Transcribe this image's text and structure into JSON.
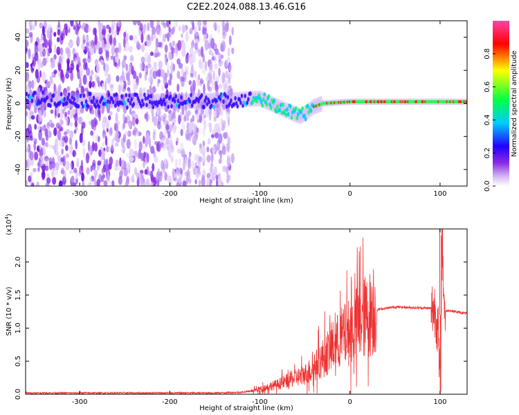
{
  "title": "C2E2.2024.088.13.46.G16",
  "chart_data": [
    {
      "type": "heatmap",
      "xlabel": "Height of straight line (km)",
      "ylabel": "Frequency (Hz)",
      "xlim": [
        -360,
        130
      ],
      "ylim": [
        -50,
        50
      ],
      "xticks": [
        -300,
        -200,
        -100,
        0,
        100
      ],
      "yticks": [
        -40,
        -20,
        0,
        20,
        40
      ],
      "colorbar": {
        "label": "Normalized spectral amplitude",
        "range": [
          0,
          1
        ],
        "ticks": [
          "0.0",
          "0.2",
          "0.4",
          "0.6",
          "0.8"
        ],
        "colors": [
          "#ffffff",
          "#d2b4f5",
          "#8a2be2",
          "#2200ff",
          "#00ccff",
          "#00ff44",
          "#ffff00",
          "#ff0000",
          "#ff44aa"
        ]
      },
      "features": {
        "noise_region_x": [
          -360,
          -130
        ],
        "noise_region_y": [
          -50,
          50
        ],
        "band_center_points": [
          {
            "x": -360,
            "y": 3
          },
          {
            "x": -300,
            "y": 2
          },
          {
            "x": -200,
            "y": 1
          },
          {
            "x": -130,
            "y": 2
          },
          {
            "x": -100,
            "y": 3
          },
          {
            "x": -80,
            "y": -2
          },
          {
            "x": -55,
            "y": -8
          },
          {
            "x": -40,
            "y": -2
          },
          {
            "x": -30,
            "y": 0
          },
          {
            "x": 0,
            "y": 1
          },
          {
            "x": 50,
            "y": 1
          },
          {
            "x": 100,
            "y": 1
          },
          {
            "x": 130,
            "y": 1
          }
        ]
      }
    },
    {
      "type": "line",
      "xlabel": "Height of straight line (km)",
      "ylabel": "SNR (10 * v/v)",
      "multiplier": "(x10",
      "multiplier_exp": "4",
      "multiplier_close": ")",
      "xlim": [
        -360,
        130
      ],
      "ylim": [
        0,
        2.5
      ],
      "xticks": [
        -300,
        -200,
        -100,
        0,
        100
      ],
      "yticks": [
        "0.0",
        "0.5",
        "1.0",
        "1.5",
        "2.0"
      ],
      "series": [
        {
          "color": "#ee3333",
          "x": [
            -360,
            -300,
            -200,
            -150,
            -120,
            -110,
            -100,
            -80,
            -60,
            -50,
            -40,
            -30,
            -20,
            -10,
            0,
            10,
            20,
            30,
            50,
            70,
            90,
            95,
            98,
            100,
            102,
            105,
            110,
            120,
            130
          ],
          "y": [
            0.02,
            0.02,
            0.02,
            0.02,
            0.03,
            0.05,
            0.08,
            0.15,
            0.25,
            0.3,
            0.4,
            0.55,
            0.7,
            0.85,
            0.95,
            1.1,
            1.2,
            1.28,
            1.32,
            1.31,
            1.3,
            1.28,
            0.9,
            0.05,
            2.4,
            1.25,
            1.27,
            1.24,
            1.22
          ]
        }
      ]
    }
  ]
}
